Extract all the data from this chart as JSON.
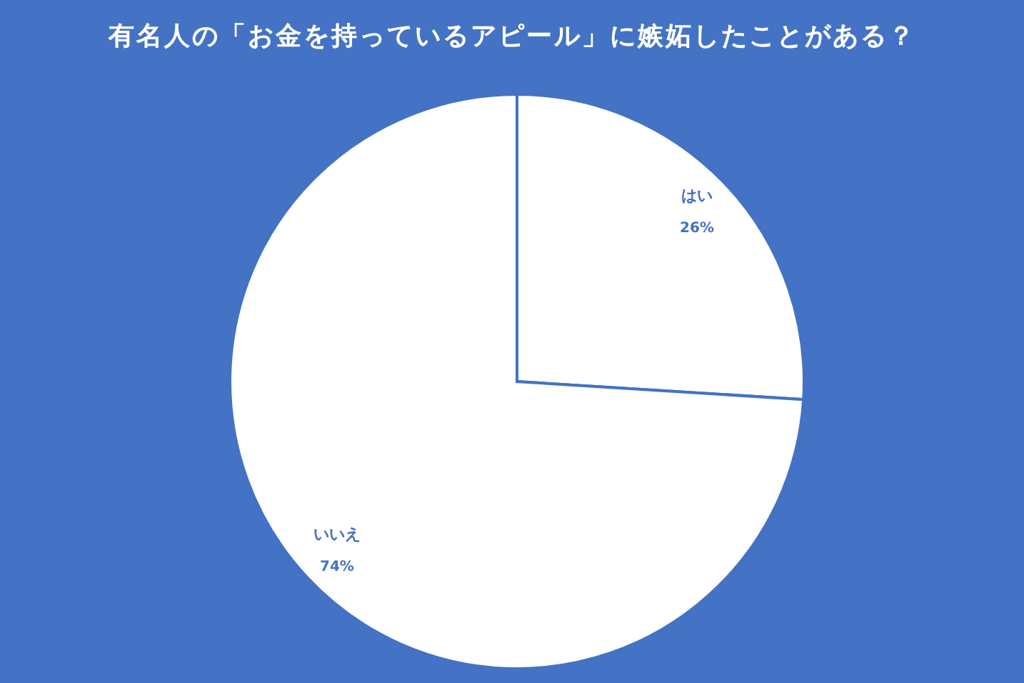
{
  "chart_data": {
    "type": "pie",
    "title": "有名人の「お金を持っているアピール」に嫉妬したことがある？",
    "categories": [
      "はい",
      "いいえ"
    ],
    "values": [
      26,
      74
    ],
    "colors": [
      "#ffffff",
      "#ffffff"
    ],
    "value_labels": [
      "26%",
      "74%"
    ],
    "legend": false
  }
}
